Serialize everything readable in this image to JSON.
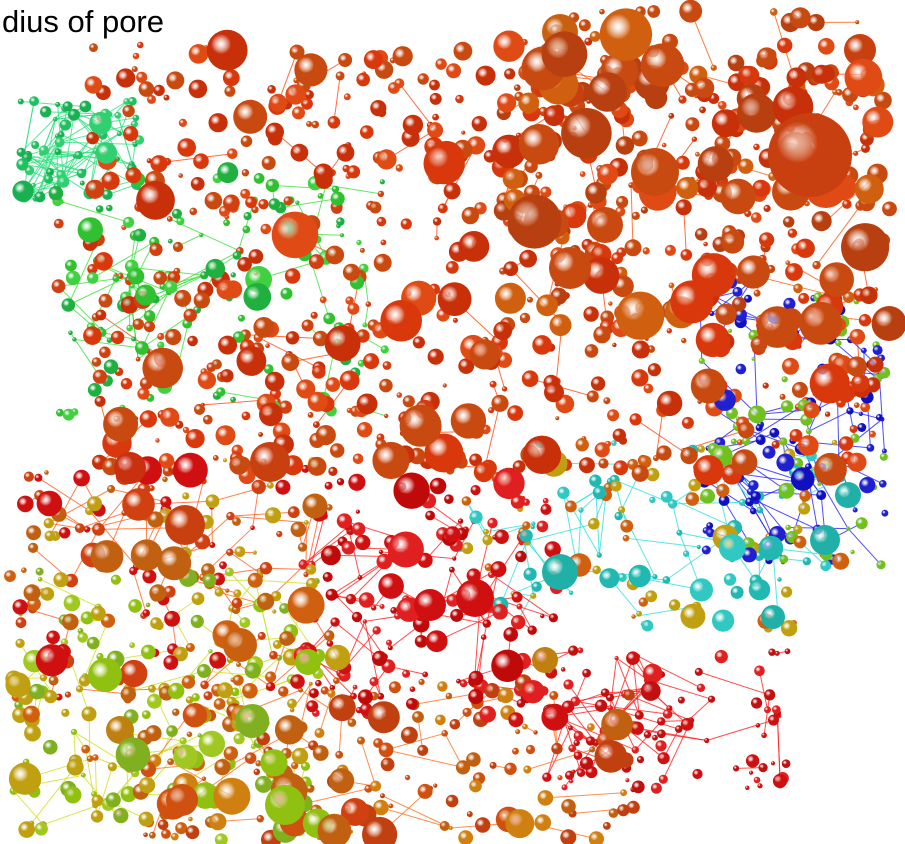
{
  "title": "dius of pore"
}
